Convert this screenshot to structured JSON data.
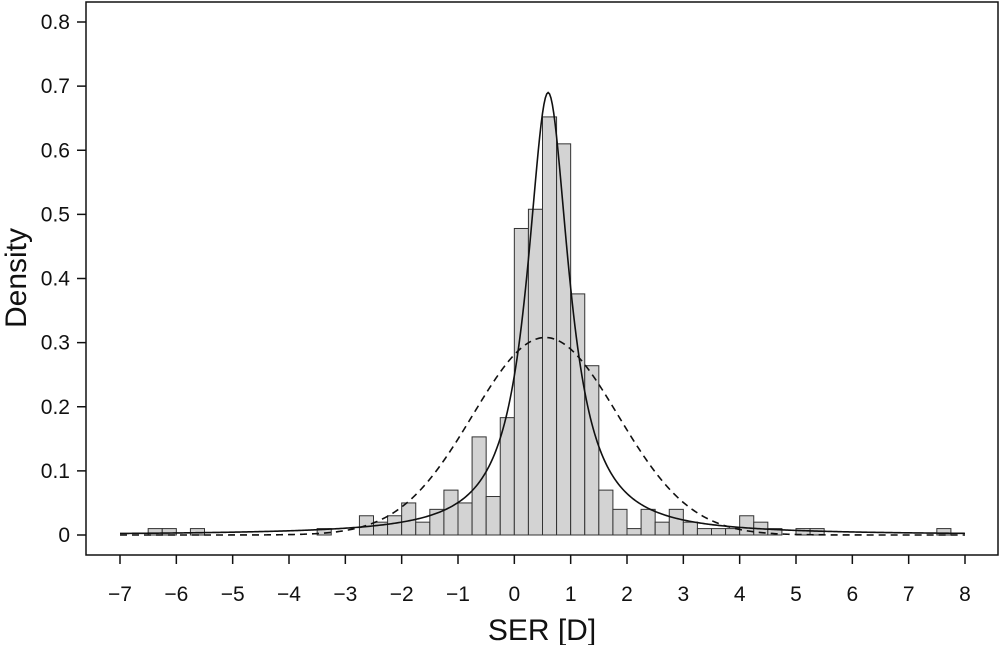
{
  "chart_data": {
    "type": "histogram",
    "xlabel": "SER [D]",
    "ylabel": "Density",
    "xlim": [
      -7,
      8
    ],
    "ylim": [
      0,
      0.8
    ],
    "xticks": [
      "−7",
      "−6",
      "−5",
      "−4",
      "−3",
      "−2",
      "−1",
      "0",
      "1",
      "2",
      "3",
      "4",
      "5",
      "6",
      "7",
      "8"
    ],
    "yticks": [
      "0",
      "0.1",
      "0.2",
      "0.3",
      "0.4",
      "0.5",
      "0.6",
      "0.7",
      "0.8"
    ],
    "bin_width": 0.25,
    "bins": [
      {
        "x0": -6.5,
        "value": 0.01
      },
      {
        "x0": -6.25,
        "value": 0.01
      },
      {
        "x0": -5.75,
        "value": 0.01
      },
      {
        "x0": -3.5,
        "value": 0.01
      },
      {
        "x0": -2.75,
        "value": 0.03
      },
      {
        "x0": -2.5,
        "value": 0.02
      },
      {
        "x0": -2.25,
        "value": 0.03
      },
      {
        "x0": -2.0,
        "value": 0.05
      },
      {
        "x0": -1.75,
        "value": 0.02
      },
      {
        "x0": -1.5,
        "value": 0.04
      },
      {
        "x0": -1.25,
        "value": 0.07
      },
      {
        "x0": -1.0,
        "value": 0.05
      },
      {
        "x0": -0.75,
        "value": 0.153
      },
      {
        "x0": -0.5,
        "value": 0.06
      },
      {
        "x0": -0.25,
        "value": 0.183
      },
      {
        "x0": 0.0,
        "value": 0.478
      },
      {
        "x0": 0.25,
        "value": 0.508
      },
      {
        "x0": 0.5,
        "value": 0.652
      },
      {
        "x0": 0.75,
        "value": 0.61
      },
      {
        "x0": 1.0,
        "value": 0.376
      },
      {
        "x0": 1.25,
        "value": 0.264
      },
      {
        "x0": 1.5,
        "value": 0.07
      },
      {
        "x0": 1.75,
        "value": 0.04
      },
      {
        "x0": 2.0,
        "value": 0.01
      },
      {
        "x0": 2.25,
        "value": 0.04
      },
      {
        "x0": 2.5,
        "value": 0.02
      },
      {
        "x0": 2.75,
        "value": 0.04
      },
      {
        "x0": 3.0,
        "value": 0.02
      },
      {
        "x0": 3.25,
        "value": 0.01
      },
      {
        "x0": 3.5,
        "value": 0.01
      },
      {
        "x0": 3.75,
        "value": 0.01
      },
      {
        "x0": 4.0,
        "value": 0.03
      },
      {
        "x0": 4.25,
        "value": 0.02
      },
      {
        "x0": 4.5,
        "value": 0.01
      },
      {
        "x0": 5.0,
        "value": 0.01
      },
      {
        "x0": 5.25,
        "value": 0.01
      },
      {
        "x0": 7.5,
        "value": 0.01
      }
    ],
    "curves": [
      {
        "style": "solid",
        "shape": "peaked",
        "center": 0.6,
        "peak": 0.69,
        "scale": 0.45
      },
      {
        "style": "dashed",
        "shape": "normal",
        "mean": 0.55,
        "peak": 0.308,
        "sd": 1.29
      }
    ],
    "colors": {
      "bar_fill": "#d3d3d3",
      "bar_stroke": "#333333",
      "line": "#111111"
    },
    "grid": false
  }
}
